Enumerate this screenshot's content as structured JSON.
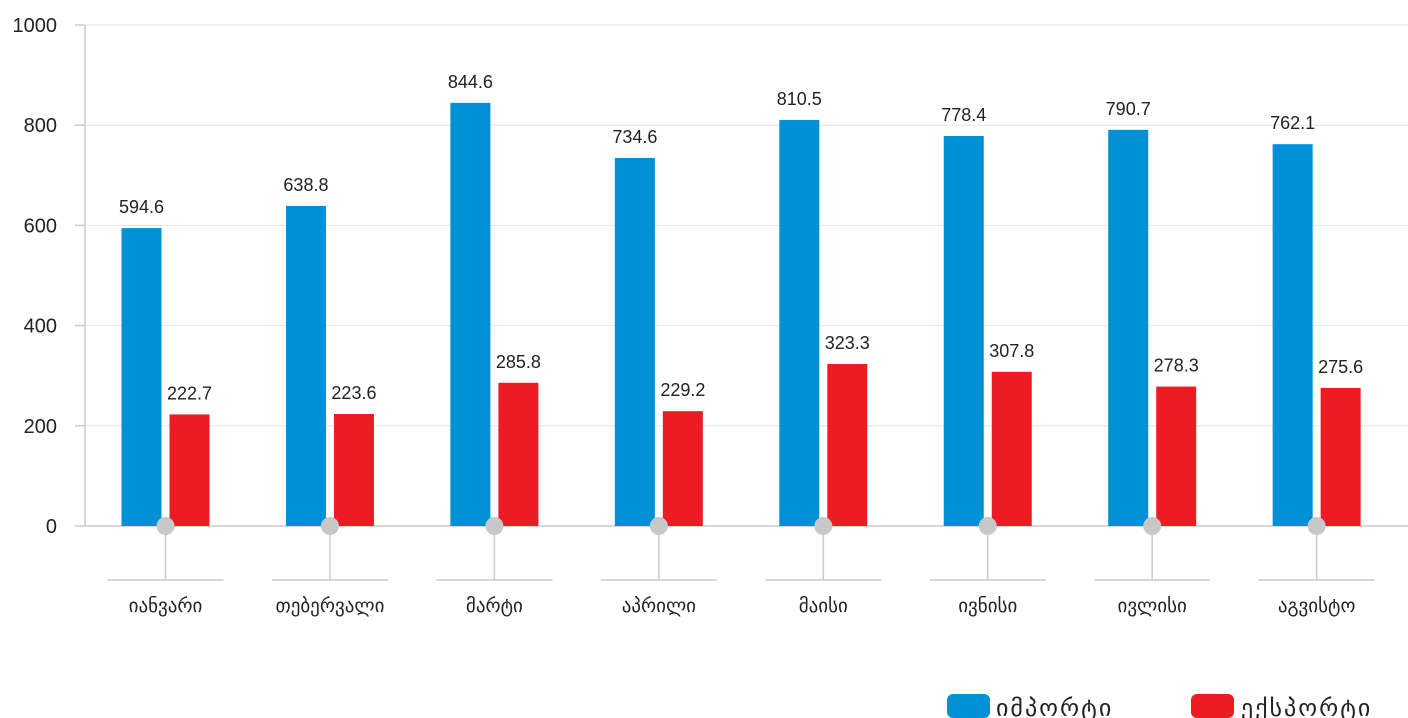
{
  "chart_data": {
    "type": "bar",
    "categories": [
      "იანვარი",
      "თებერვალი",
      "მარტი",
      "აპრილი",
      "მაისი",
      "ივნისი",
      "ივლისი",
      "აგვისტო"
    ],
    "series": [
      {
        "name": "იმპორტი",
        "color": "#0090d6",
        "values": [
          594.6,
          638.8,
          844.6,
          734.6,
          810.5,
          778.4,
          790.7,
          762.1
        ],
        "labels": [
          "594.6",
          "638.8",
          "844.6",
          "734.6",
          "810.5",
          "778.4",
          "790.7",
          "762.1"
        ]
      },
      {
        "name": "ექსპორტი",
        "color": "#ed1c24",
        "values": [
          222.7,
          223.6,
          285.8,
          229.2,
          323.3,
          307.8,
          278.3,
          275.6
        ],
        "labels": [
          "222.7",
          "223.6",
          "285.8",
          "229.2",
          "323.3",
          "307.8",
          "278.3",
          "275.6"
        ]
      }
    ],
    "ylim": [
      0,
      1000
    ],
    "yticks": [
      "0",
      "200",
      "400",
      "600",
      "800",
      "1000"
    ],
    "grid": true,
    "legend": "bottom-right",
    "title": "",
    "xlabel": "",
    "ylabel": ""
  }
}
